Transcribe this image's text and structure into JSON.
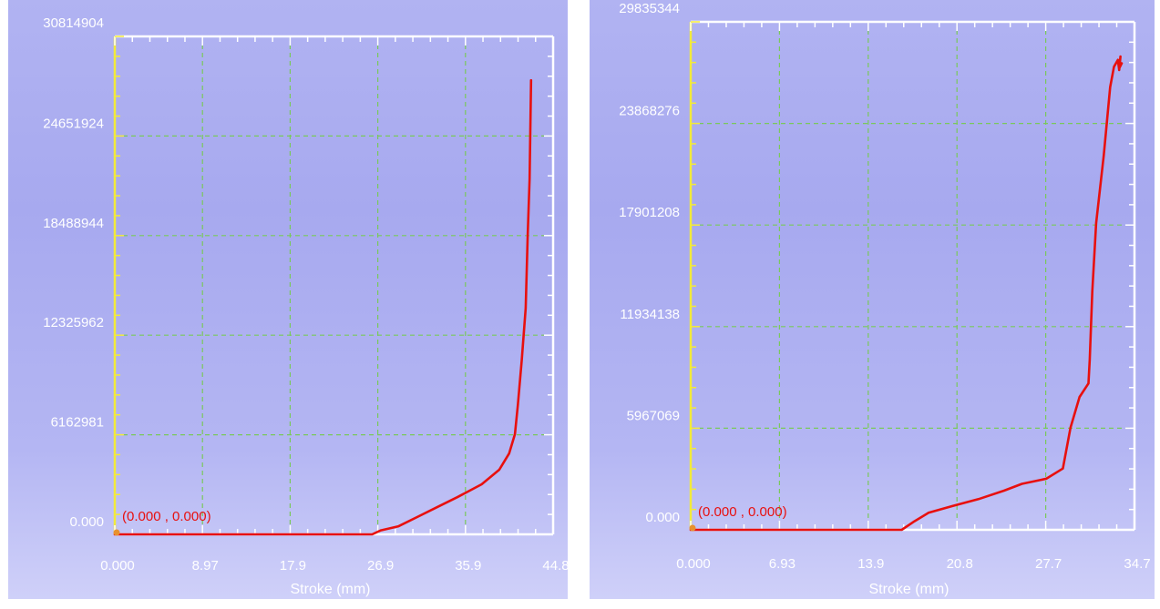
{
  "chart_data": [
    {
      "type": "line",
      "xlabel": "Stroke (mm)",
      "ylabel": "",
      "xlim": [
        0,
        44.8
      ],
      "ylim": [
        0,
        30814904
      ],
      "x_ticks": [
        "0.000",
        "8.97",
        "17.9",
        "26.9",
        "35.9",
        "44.8"
      ],
      "y_ticks": [
        "0.000",
        "6162981",
        "12325962",
        "18488944",
        "24651924",
        "30814904"
      ],
      "grid": true,
      "origin_label": "(0.000 , 0.000)",
      "colors": {
        "line": "#e8100e",
        "grid": "#79c95a",
        "axis": "#ffffff",
        "y_axis": "#f2ea3a"
      },
      "series": [
        {
          "x": [
            0,
            26.3,
            27.2,
            29.0,
            31.0,
            33.0,
            35.0,
            37.5,
            39.3,
            40.3,
            40.9,
            41.2,
            41.6,
            42.0,
            42.2,
            42.4,
            42.55
          ],
          "y": [
            0,
            0,
            250000,
            500000,
            1100000,
            1700000,
            2300000,
            3100000,
            4000000,
            5000000,
            6200000,
            8000000,
            10800000,
            14000000,
            18500000,
            22000000,
            28100000
          ]
        }
      ]
    },
    {
      "type": "line",
      "xlabel": "Stroke (mm)",
      "ylabel": "",
      "xlim": [
        0,
        34.7
      ],
      "ylim": [
        0,
        29835344
      ],
      "x_ticks": [
        "0.000",
        "6.93",
        "13.9",
        "20.8",
        "27.7",
        "34.7"
      ],
      "y_ticks": [
        "0.000",
        "5967069",
        "11934138",
        "17901208",
        "23868276",
        "29835344"
      ],
      "grid": true,
      "origin_label": "(0.000 , 0.000)",
      "colors": {
        "line": "#e8100e",
        "grid": "#79c95a",
        "axis": "#ffffff",
        "y_axis": "#f2ea3a"
      },
      "series": [
        {
          "x": [
            0,
            16.5,
            17.5,
            18.6,
            20.5,
            22.5,
            24.5,
            25.9,
            27.8,
            29.1,
            29.7,
            30.4,
            31.1,
            31.2,
            31.4,
            31.7,
            32.3,
            32.8,
            33.1,
            33.4,
            33.5,
            33.6,
            33.5,
            33.7
          ],
          "y": [
            0,
            0,
            500000,
            1000000,
            1400000,
            1800000,
            2300000,
            2700000,
            3000000,
            3600000,
            6000000,
            7800000,
            8600000,
            10000000,
            14000000,
            18000000,
            22000000,
            26000000,
            27200000,
            27600000,
            27000000,
            27800000,
            27100000,
            27400000
          ]
        }
      ]
    }
  ]
}
